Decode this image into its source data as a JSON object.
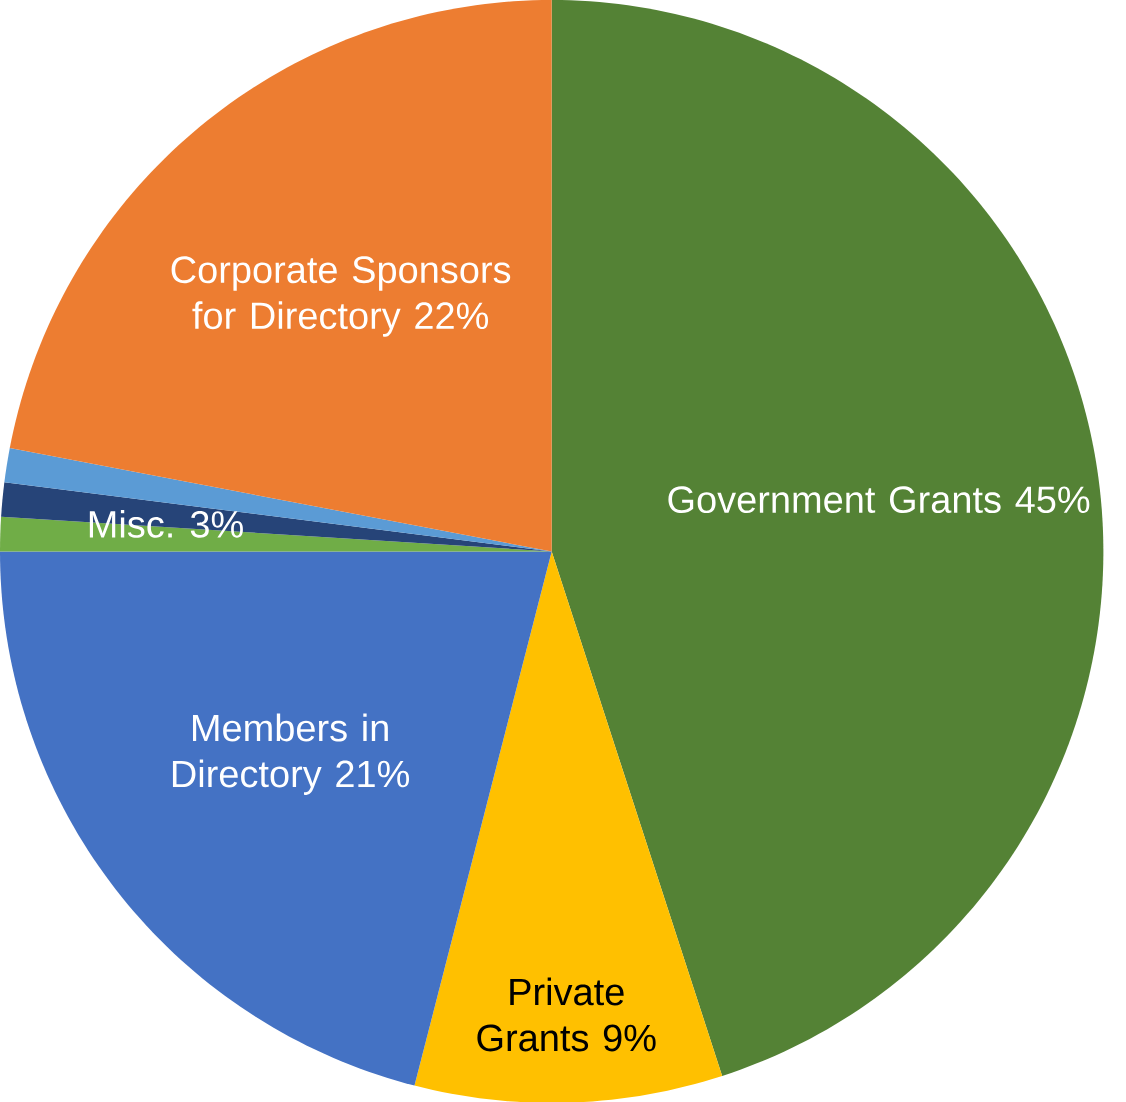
{
  "chart_data": {
    "type": "pie",
    "categories": [
      "Government Grants 45%",
      "Private Grants 9%",
      "Members in Directory 21%",
      null,
      null,
      null,
      "Corporate Sponsors for Directory 22%"
    ],
    "values": [
      45,
      9,
      21,
      1,
      1,
      1,
      22
    ],
    "colors": [
      "#548235",
      "#ffc000",
      "#4472c4",
      "#70ad47",
      "#264478",
      "#5b9bd5",
      "#ed7d31"
    ],
    "annotations": [
      "Misc. 3%"
    ]
  }
}
